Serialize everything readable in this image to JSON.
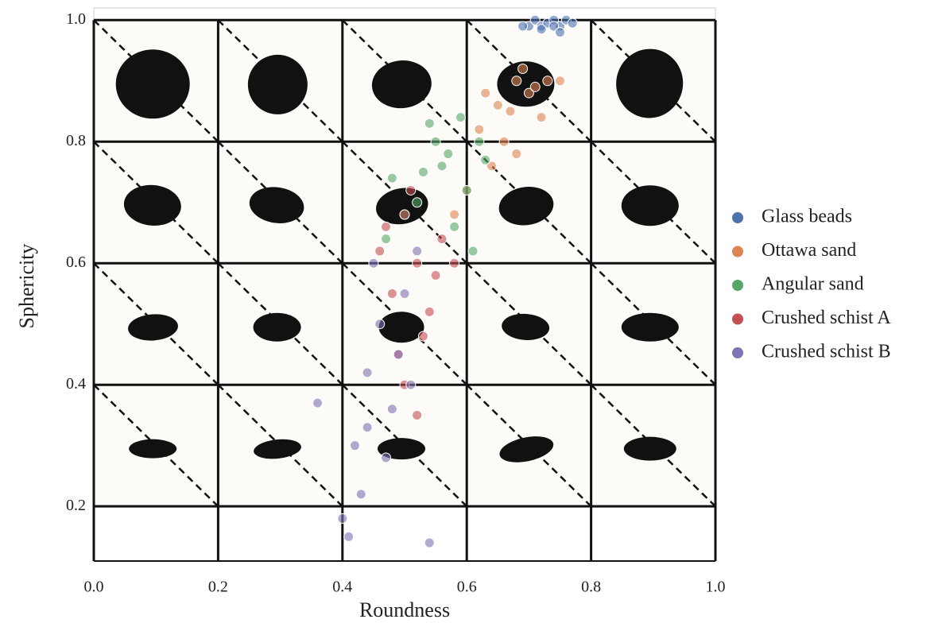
{
  "chart_data": {
    "type": "scatter",
    "x_label": "Roundness",
    "y_label": "Sphericity",
    "xlim": [
      0,
      1
    ],
    "ylim": [
      0.11,
      1.02
    ],
    "xticks": [
      {
        "value": 0,
        "label": "0.0"
      },
      0.2,
      0.4,
      0.6,
      0.8,
      {
        "value": 1,
        "label": "1.0"
      }
    ],
    "yticks": [
      0.2,
      0.4,
      0.6,
      0.8,
      {
        "value": 1,
        "label": "1.0"
      }
    ],
    "grid": true,
    "legend": "right",
    "series": [
      {
        "name": "Glass beads",
        "color": "#4c72b0",
        "x": [
          0.7,
          0.71,
          0.72,
          0.73,
          0.74,
          0.75,
          0.76,
          0.72,
          0.74,
          0.77,
          0.69,
          0.75
        ],
        "values": [
          0.99,
          1.0,
          0.99,
          0.995,
          1.0,
          0.99,
          1.0,
          0.985,
          0.99,
          0.995,
          0.99,
          0.98
        ]
      },
      {
        "name": "Ottawa sand",
        "color": "#dd8452",
        "x": [
          0.62,
          0.65,
          0.68,
          0.7,
          0.72,
          0.66,
          0.69,
          0.64,
          0.71,
          0.67,
          0.6,
          0.73,
          0.63,
          0.75,
          0.68,
          0.58
        ],
        "values": [
          0.82,
          0.86,
          0.9,
          0.88,
          0.84,
          0.8,
          0.92,
          0.76,
          0.89,
          0.85,
          0.72,
          0.9,
          0.88,
          0.9,
          0.78,
          0.68
        ]
      },
      {
        "name": "Angular sand",
        "color": "#55a868",
        "x": [
          0.5,
          0.53,
          0.55,
          0.57,
          0.59,
          0.6,
          0.62,
          0.52,
          0.56,
          0.58,
          0.48,
          0.61,
          0.54,
          0.63,
          0.47
        ],
        "values": [
          0.68,
          0.75,
          0.8,
          0.78,
          0.84,
          0.72,
          0.8,
          0.7,
          0.76,
          0.66,
          0.74,
          0.62,
          0.83,
          0.77,
          0.64
        ]
      },
      {
        "name": "Crushed schist A",
        "color": "#c44e52",
        "x": [
          0.46,
          0.48,
          0.5,
          0.52,
          0.54,
          0.56,
          0.49,
          0.53,
          0.51,
          0.55,
          0.47,
          0.58,
          0.5,
          0.52
        ],
        "values": [
          0.62,
          0.55,
          0.68,
          0.6,
          0.52,
          0.64,
          0.45,
          0.48,
          0.72,
          0.58,
          0.66,
          0.6,
          0.4,
          0.35
        ]
      },
      {
        "name": "Crushed schist B",
        "color": "#8172b3",
        "x": [
          0.4,
          0.42,
          0.44,
          0.46,
          0.48,
          0.5,
          0.43,
          0.45,
          0.47,
          0.49,
          0.41,
          0.52,
          0.36,
          0.54,
          0.44,
          0.51
        ],
        "values": [
          0.18,
          0.3,
          0.42,
          0.5,
          0.36,
          0.55,
          0.22,
          0.6,
          0.28,
          0.45,
          0.15,
          0.62,
          0.37,
          0.14,
          0.33,
          0.4
        ]
      }
    ]
  }
}
